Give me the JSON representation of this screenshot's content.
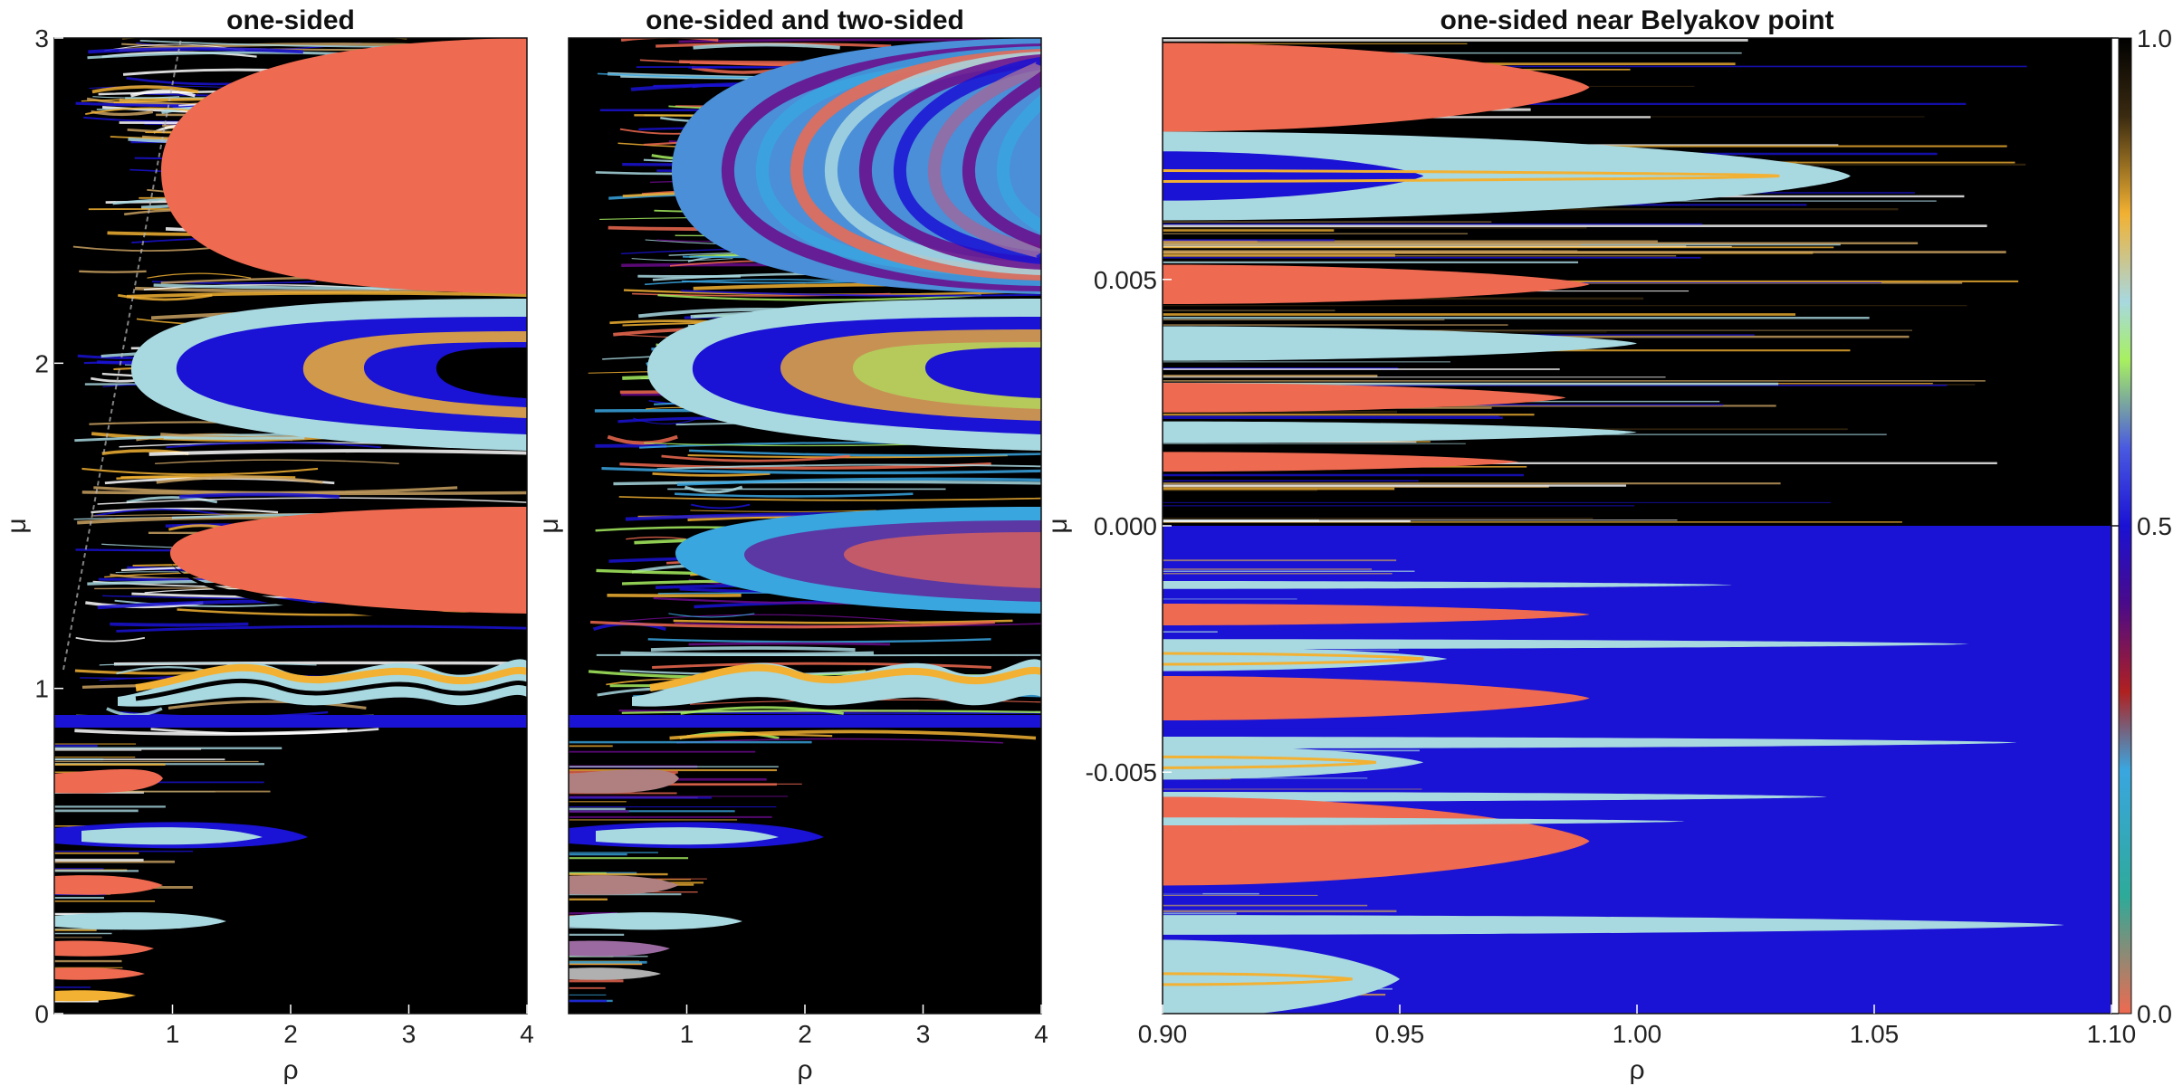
{
  "chart_data": [
    {
      "type": "heatmap",
      "title": "one-sided",
      "xlabel": "ρ",
      "ylabel": "μ",
      "xlim": [
        0,
        4
      ],
      "ylim": [
        0,
        3
      ],
      "xticks": [
        "1",
        "2",
        "3",
        "4"
      ],
      "yticks": [
        "0",
        "1",
        "2",
        "3"
      ],
      "regions": [
        {
          "shape": "tongue",
          "color": "#ee6a50",
          "rho_tip": 0.95,
          "mu": [
            2.22,
            3.0
          ]
        },
        {
          "shape": "tongue",
          "color": "#ee6a50",
          "rho_tip": 0.95,
          "mu": [
            1.25,
            1.58
          ]
        },
        {
          "shape": "tongue",
          "color": "#1a12d4",
          "rho_tip": 0.55,
          "mu": [
            1.75,
            2.15
          ]
        },
        {
          "shape": "band",
          "color": "#a8d8e0",
          "rho_tip": 0.4,
          "mu": [
            0.95,
            1.1
          ]
        },
        {
          "shape": "tongue",
          "color": "#ee6a50",
          "rho_tip": 0.3,
          "mu": [
            0.67,
            0.78
          ]
        },
        {
          "shape": "tongue",
          "color": "#ee6a50",
          "rho_tip": 0.3,
          "mu": [
            0.38,
            0.47
          ]
        }
      ]
    },
    {
      "type": "heatmap",
      "title": "one-sided and two-sided",
      "xlabel": "ρ",
      "ylabel": "μ",
      "xlim": [
        0,
        4
      ],
      "ylim": [
        0,
        3
      ],
      "xticks": [
        "1",
        "2",
        "3",
        "4"
      ],
      "yticks": [],
      "regions": [
        {
          "shape": "tongue",
          "color": "#4a8fd8",
          "rho_tip": 0.95,
          "mu": [
            2.22,
            3.0
          ]
        },
        {
          "shape": "tongue",
          "color": "#4a8fd8",
          "rho_tip": 0.95,
          "mu": [
            1.25,
            1.58
          ]
        },
        {
          "shape": "band",
          "color": "#a8d8e0",
          "rho_tip": 0.4,
          "mu": [
            0.95,
            1.1
          ]
        }
      ]
    },
    {
      "type": "heatmap",
      "title": "one-sided near Belyakov point",
      "xlabel": "ρ",
      "ylabel": "μ",
      "xlim": [
        0.9,
        1.1
      ],
      "ylim": [
        -0.0099,
        0.0099
      ],
      "xticks": [
        "0.90",
        "0.95",
        "1.00",
        "1.05",
        "1.10"
      ],
      "yticks": [
        "-0.005",
        "0.000",
        "0.005"
      ],
      "upper_background": "#000000",
      "lower_background": "#1a12d4",
      "tongues": [
        {
          "color": "#ee6a50",
          "rho_end": 0.99,
          "mu": 0.0089,
          "half_width": 0.0009
        },
        {
          "color": "#a8d8e0",
          "rho_end": 1.045,
          "mu": 0.0071,
          "half_width": 0.0009
        },
        {
          "color": "#1a12d4",
          "rho_end": 0.955,
          "mu": 0.0071,
          "half_width": 0.0005
        },
        {
          "color": "#ee6a50",
          "rho_end": 0.99,
          "mu": 0.0049,
          "half_width": 0.0004
        },
        {
          "color": "#a8d8e0",
          "rho_end": 1.0,
          "mu": 0.0037,
          "half_width": 0.00035
        },
        {
          "color": "#ee6a50",
          "rho_end": 0.985,
          "mu": 0.0026,
          "half_width": 0.0003
        },
        {
          "color": "#a8d8e0",
          "rho_end": 1.0,
          "mu": 0.0019,
          "half_width": 0.00022
        },
        {
          "color": "#ee6a50",
          "rho_end": 0.975,
          "mu": 0.0013,
          "half_width": 0.0002
        },
        {
          "color": "#ee6a50",
          "rho_end": 0.99,
          "mu": -0.0018,
          "half_width": 0.00022
        },
        {
          "color": "#a8d8e0",
          "rho_end": 1.07,
          "mu": -0.0024,
          "half_width": 0.0001
        },
        {
          "color": "#a8d8e0",
          "rho_end": 0.96,
          "mu": -0.0027,
          "half_width": 0.00025
        },
        {
          "color": "#ee6a50",
          "rho_end": 0.99,
          "mu": -0.0035,
          "half_width": 0.00045
        },
        {
          "color": "#a8d8e0",
          "rho_end": 1.08,
          "mu": -0.0044,
          "half_width": 0.00012
        },
        {
          "color": "#a8d8e0",
          "rho_end": 0.955,
          "mu": -0.0048,
          "half_width": 0.00035
        },
        {
          "color": "#a8d8e0",
          "rho_end": 1.04,
          "mu": -0.0055,
          "half_width": 0.0001
        },
        {
          "color": "#ee6a50",
          "rho_end": 0.99,
          "mu": -0.0064,
          "half_width": 0.0009
        },
        {
          "color": "#a8d8e0",
          "rho_end": 1.09,
          "mu": -0.0081,
          "half_width": 0.0002
        },
        {
          "color": "#a8d8e0",
          "rho_end": 0.95,
          "mu": -0.0092,
          "half_width": 0.0008
        },
        {
          "color": "#a8d8e0",
          "rho_end": 1.02,
          "mu": -0.0012,
          "half_width": 8e-05
        },
        {
          "color": "#a8d8e0",
          "rho_end": 1.01,
          "mu": -0.006,
          "half_width": 8e-05
        }
      ]
    }
  ],
  "colorbar": {
    "ticks": [
      "1.0",
      "0.5",
      "0.0"
    ],
    "colors": [
      "#000000",
      "#f2b132",
      "#a8d8e0",
      "#a8f060",
      "#1a12d4",
      "#6a0a8a",
      "#b02020",
      "#3aa6e0",
      "#2eaa99",
      "#ee6a50"
    ]
  }
}
